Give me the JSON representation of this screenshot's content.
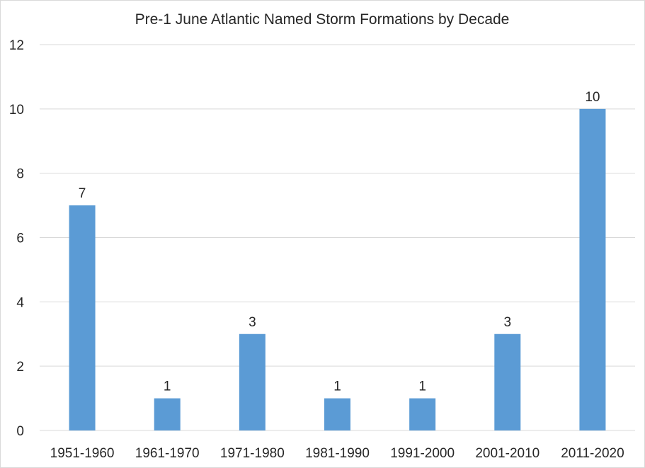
{
  "chart_data": {
    "type": "bar",
    "title": "Pre-1 June Atlantic Named Storm Formations by Decade",
    "xlabel": "",
    "ylabel": "",
    "categories": [
      "1951-1960",
      "1961-1970",
      "1971-1980",
      "1981-1990",
      "1991-2000",
      "2001-2010",
      "2011-2020"
    ],
    "values": [
      7,
      1,
      3,
      1,
      1,
      3,
      10
    ],
    "data_labels": [
      "7",
      "1",
      "3",
      "1",
      "1",
      "3",
      "10"
    ],
    "ylim": [
      0,
      12
    ],
    "y_ticks": [
      0,
      2,
      4,
      6,
      8,
      10,
      12
    ],
    "y_tick_labels": [
      "0",
      "2",
      "4",
      "6",
      "8",
      "10",
      "12"
    ],
    "grid": true,
    "legend": "none",
    "bar_color": "#5b9bd5",
    "grid_color": "#d9d9d9",
    "text_color": "#262626"
  }
}
